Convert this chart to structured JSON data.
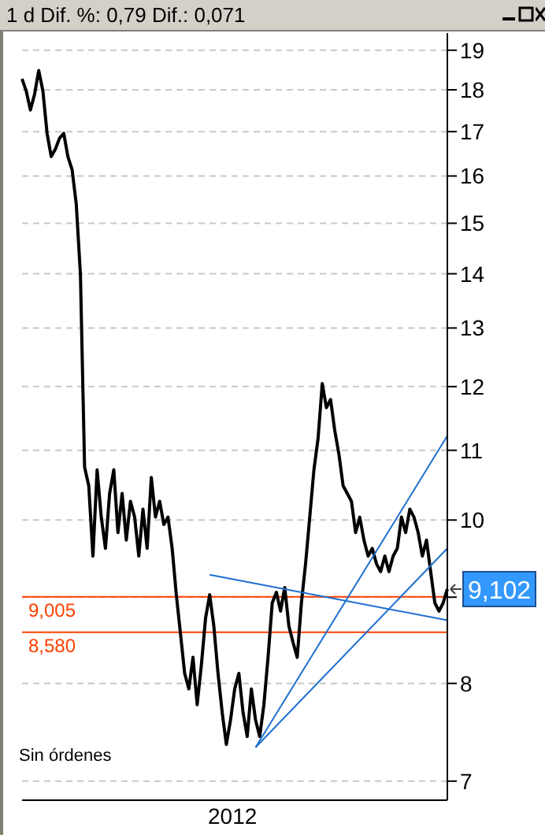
{
  "chart_data": {
    "type": "line",
    "title": "1 d Dif. %: 0,79 Dif.: 0,071",
    "log": "y",
    "grid": "y",
    "categories": [
      null,
      null,
      null,
      null,
      null,
      null,
      null,
      null,
      null,
      null,
      null,
      null,
      null,
      null,
      null,
      null,
      null,
      null,
      null,
      null,
      null,
      null,
      null,
      null,
      null,
      null,
      null,
      null,
      null,
      null,
      null,
      null,
      null,
      null,
      null,
      null,
      null,
      null,
      null,
      null,
      null,
      null,
      null,
      null,
      null,
      null,
      null,
      null,
      null,
      null,
      null,
      null,
      null,
      null,
      null,
      null,
      null,
      null,
      null,
      null,
      null,
      null,
      null,
      null,
      null,
      null,
      null,
      null,
      null,
      null,
      null,
      null,
      null,
      null,
      null,
      null,
      null,
      null,
      null,
      null,
      null,
      null,
      null,
      null,
      null,
      null,
      null,
      null,
      null,
      null,
      null,
      null,
      null,
      null,
      null,
      null,
      null,
      null,
      null,
      null,
      null,
      null,
      null
    ],
    "series": [
      {
        "type": "line",
        "color": "#000000",
        "values": [
          18.27,
          17.97,
          17.51,
          17.89,
          18.48,
          17.97,
          16.96,
          16.43,
          16.6,
          16.85,
          16.96,
          16.43,
          16.14,
          15.4,
          13.99,
          10.75,
          10.48,
          9.52,
          10.71,
          10.04,
          9.62,
          10.37,
          10.71,
          9.83,
          10.37,
          9.73,
          10.26,
          10.04,
          9.52,
          10.15,
          9.62,
          10.6,
          10.04,
          10.26,
          9.94,
          10.04,
          9.62,
          9.03,
          8.56,
          8.11,
          7.94,
          8.29,
          7.77,
          8.2,
          8.74,
          9.03,
          8.65,
          8.11,
          7.69,
          7.36,
          7.61,
          7.94,
          8.11,
          7.69,
          7.44,
          7.94,
          7.61,
          7.44,
          7.77,
          8.29,
          8.93,
          9.06,
          8.83,
          9.12,
          8.65,
          8.46,
          8.29,
          8.93,
          9.42,
          10.04,
          10.71,
          11.18,
          12.05,
          11.66,
          11.79,
          11.3,
          10.94,
          10.48,
          10.37,
          10.26,
          9.83,
          10.04,
          9.73,
          9.52,
          9.62,
          9.42,
          9.32,
          9.52,
          9.32,
          9.52,
          9.62,
          10.04,
          9.83,
          10.15,
          10.04,
          9.83,
          9.52,
          9.73,
          9.32,
          8.93,
          8.83,
          8.93,
          9.1
        ]
      },
      {
        "type": "line",
        "color": "#1f6fd0",
        "values": [
          null,
          null,
          null,
          null,
          null,
          null,
          null,
          null,
          null,
          null,
          null,
          null,
          null,
          null,
          null,
          null,
          null,
          null,
          null,
          null,
          null,
          null,
          null,
          null,
          null,
          null,
          null,
          null,
          null,
          null,
          null,
          null,
          null,
          null,
          null,
          null,
          null,
          null,
          null,
          null,
          null,
          null,
          null,
          null,
          null,
          9.28,
          null,
          null,
          null,
          null,
          null,
          null,
          null,
          null,
          null,
          null,
          null,
          null,
          null,
          null,
          null,
          null,
          null,
          null,
          null,
          null,
          null,
          null,
          null,
          null,
          null,
          null,
          null,
          null,
          null,
          null,
          null,
          null,
          null,
          null,
          null,
          null,
          null,
          null,
          null,
          null,
          null,
          null,
          null,
          null,
          null,
          null,
          null,
          null,
          null,
          null,
          null,
          null,
          null,
          null,
          null,
          null,
          8.72
        ]
      },
      {
        "type": "line",
        "color": "#1f6fd0",
        "values": [
          null,
          null,
          null,
          null,
          null,
          null,
          null,
          null,
          null,
          null,
          null,
          null,
          null,
          null,
          null,
          null,
          null,
          null,
          null,
          null,
          null,
          null,
          null,
          null,
          null,
          null,
          null,
          null,
          null,
          null,
          null,
          null,
          null,
          null,
          null,
          null,
          null,
          null,
          null,
          null,
          null,
          null,
          null,
          null,
          null,
          null,
          null,
          null,
          null,
          null,
          null,
          null,
          null,
          null,
          null,
          null,
          7.33,
          null,
          null,
          null,
          null,
          null,
          null,
          null,
          null,
          null,
          null,
          null,
          null,
          null,
          null,
          null,
          null,
          null,
          null,
          null,
          null,
          null,
          null,
          null,
          null,
          null,
          null,
          null,
          null,
          null,
          null,
          null,
          null,
          null,
          null,
          null,
          null,
          null,
          null,
          null,
          null,
          null,
          null,
          null,
          null,
          null,
          11.22
        ]
      },
      {
        "type": "line",
        "color": "#1f6fd0",
        "values": [
          null,
          null,
          null,
          null,
          null,
          null,
          null,
          null,
          null,
          null,
          null,
          null,
          null,
          null,
          null,
          null,
          null,
          null,
          null,
          null,
          null,
          null,
          null,
          null,
          null,
          null,
          null,
          null,
          null,
          null,
          null,
          null,
          null,
          null,
          null,
          null,
          null,
          null,
          null,
          null,
          null,
          null,
          null,
          null,
          null,
          null,
          null,
          null,
          null,
          null,
          null,
          null,
          null,
          null,
          null,
          null,
          7.33,
          null,
          null,
          null,
          null,
          null,
          null,
          null,
          null,
          null,
          null,
          null,
          null,
          null,
          null,
          null,
          null,
          null,
          null,
          null,
          null,
          null,
          null,
          null,
          null,
          null,
          null,
          null,
          null,
          null,
          null,
          null,
          null,
          null,
          null,
          null,
          null,
          null,
          null,
          null,
          null,
          null,
          null,
          null,
          null,
          null,
          9.62
        ]
      }
    ],
    "ylim": [
      6.82,
      19.45
    ],
    "yticks": [
      7,
      8,
      {
        "value": 9,
        "label": null
      },
      10,
      11,
      12,
      13,
      14,
      15,
      16,
      17,
      18,
      19
    ],
    "ref_lines": [
      {
        "axis": "y",
        "value": 9.005,
        "label": "9,005",
        "color": "#ff4000"
      },
      {
        "axis": "y",
        "value": 8.58,
        "label": "8,580",
        "color": "#ff4000"
      }
    ],
    "annotations": [
      "Sin órdenes",
      "2012",
      "9,102"
    ]
  }
}
